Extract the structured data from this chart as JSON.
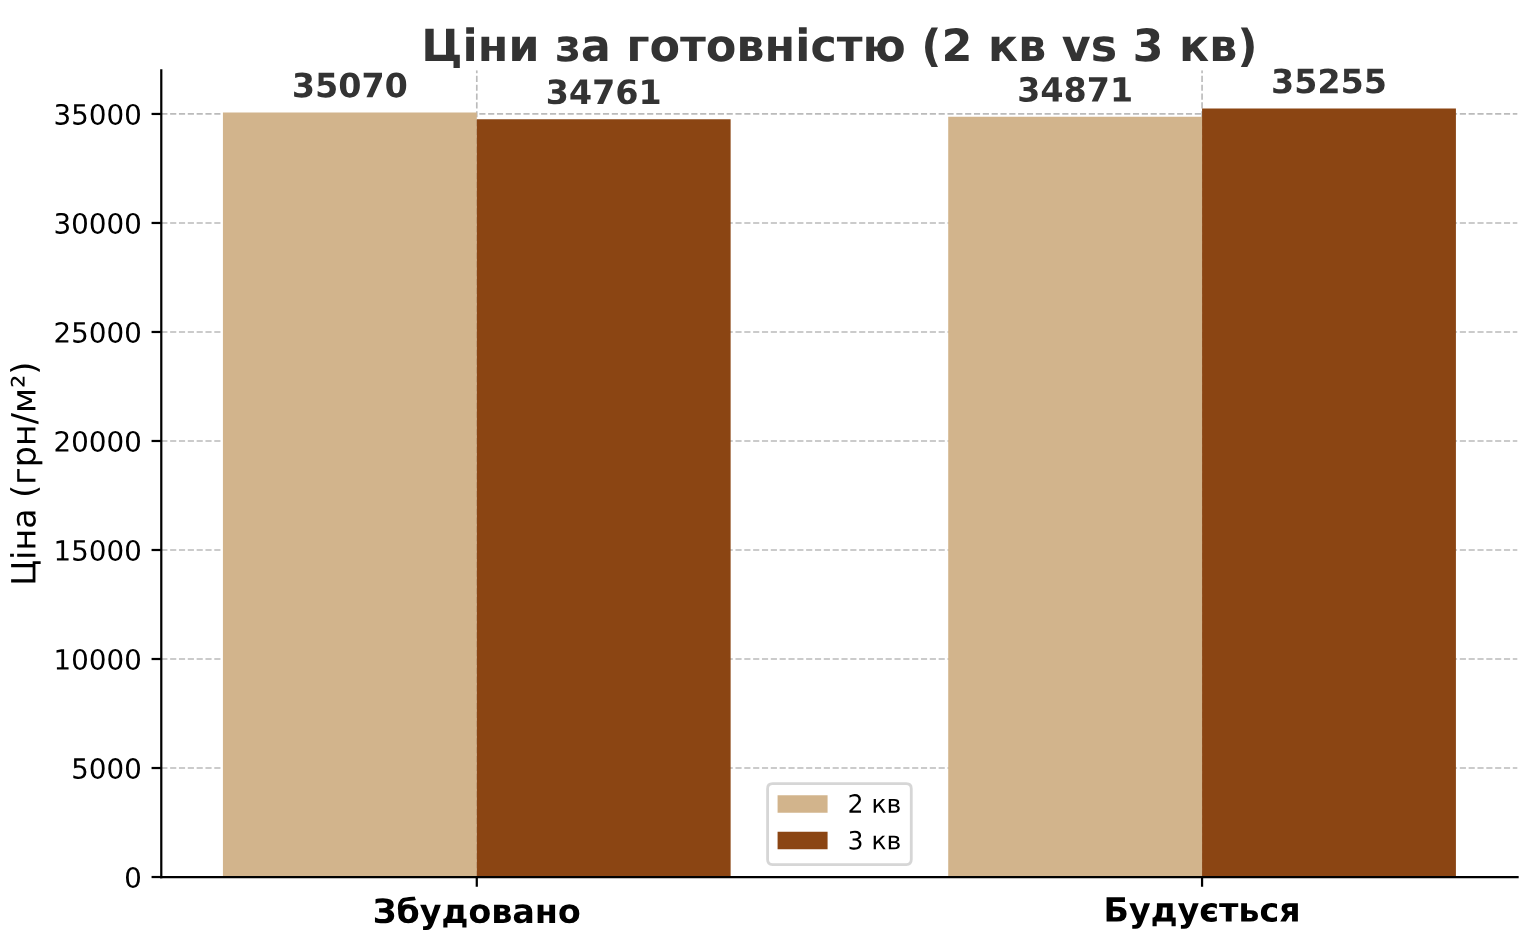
{
  "chart_data": {
    "type": "bar",
    "title": "Ціни за готовністю (2 кв vs 3 кв)",
    "ylabel": "Ціна (грн/м²)",
    "categories": [
      "Збудовано",
      "Будується"
    ],
    "series": [
      {
        "name": "2 кв",
        "color": "#d2b48c",
        "values": [
          35070,
          34871
        ]
      },
      {
        "name": "3 кв",
        "color": "#8b4513",
        "values": [
          34761,
          35255
        ]
      }
    ],
    "ylim": [
      0,
      37000
    ],
    "yticks": [
      0,
      5000,
      10000,
      15000,
      20000,
      25000,
      30000,
      35000
    ],
    "grid": true,
    "legend": "bottom",
    "data_labels": true
  }
}
